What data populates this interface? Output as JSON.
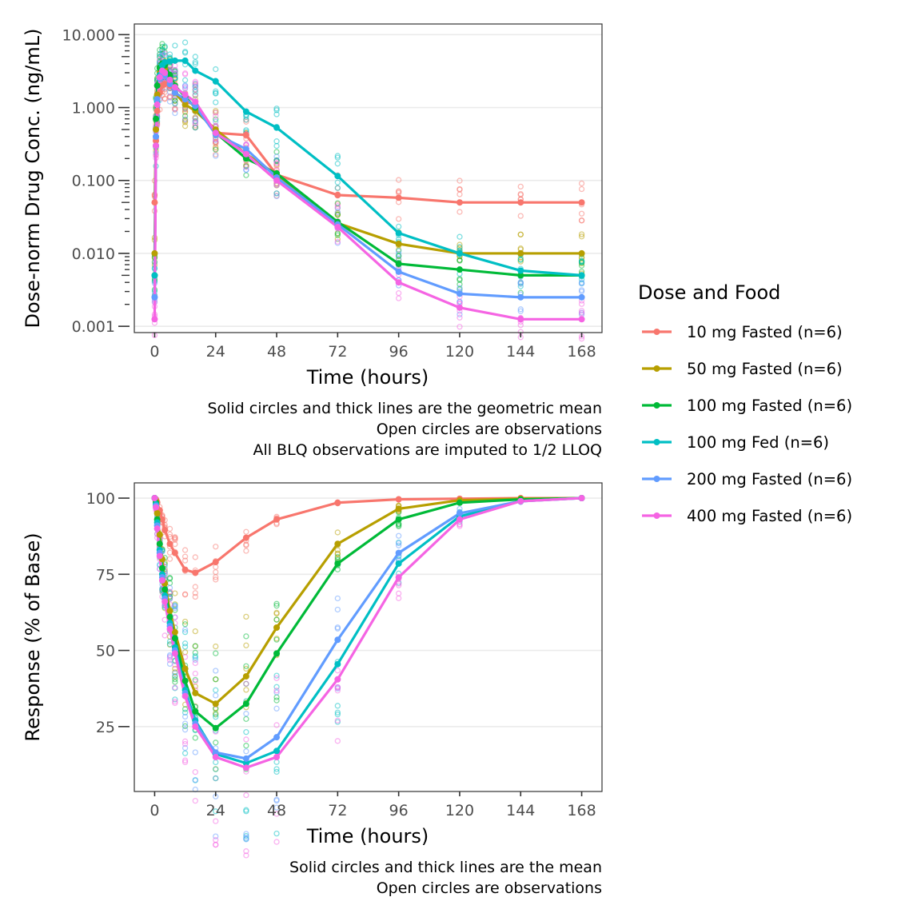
{
  "chart_data": [
    {
      "type": "line",
      "title": "",
      "xlabel": "Time (hours)",
      "ylabel": "Dose-norm Drug Conc. (ng/mL)",
      "yscale": "log10",
      "xlim": [
        -8,
        176
      ],
      "ylim": [
        0.00082,
        14
      ],
      "x_ticks": [
        0,
        24,
        48,
        72,
        96,
        120,
        144,
        168
      ],
      "y_ticks": [
        10,
        1,
        0.1,
        0.01,
        0.001
      ],
      "y_tick_labels": [
        "10.000",
        "1.000",
        "0.100",
        "0.010",
        "0.001"
      ],
      "grid": "horizontal-major",
      "caption": [
        "Solid circles and thick lines are the geometric mean",
        "Open circles are observations",
        "All BLQ observations are imputed to 1/2 LLOQ"
      ],
      "x": [
        0,
        0.5,
        1,
        2,
        3,
        4,
        6,
        8,
        12,
        16,
        24,
        36,
        48,
        72,
        96,
        120,
        144,
        168
      ],
      "series": [
        {
          "name": "10 mg Fasted (n=6)",
          "color": "#F8766D",
          "values": [
            0.05,
            0.35,
            0.9,
            1.6,
            2.0,
            2.1,
            2.0,
            1.6,
            1.2,
            1.1,
            0.45,
            0.42,
            0.12,
            0.063,
            0.058,
            0.05,
            0.05,
            0.05
          ]
        },
        {
          "name": "50 mg Fasted (n=6)",
          "color": "#B79F00",
          "values": [
            0.01,
            0.5,
            1.5,
            3.0,
            3.6,
            3.4,
            2.4,
            1.6,
            1.1,
            0.9,
            0.5,
            0.23,
            0.12,
            0.026,
            0.0135,
            0.01,
            0.01,
            0.01
          ]
        },
        {
          "name": "100 mg Fasted (n=6)",
          "color": "#00BA38",
          "values": [
            0.005,
            0.7,
            2.0,
            3.5,
            4.0,
            3.8,
            2.8,
            2.0,
            1.4,
            1.0,
            0.45,
            0.2,
            0.125,
            0.027,
            0.0072,
            0.006,
            0.005,
            0.005
          ]
        },
        {
          "name": "100 mg Fed (n=6)",
          "color": "#00BFC4",
          "values": [
            0.005,
            0.3,
            1.2,
            2.8,
            3.8,
            4.2,
            4.3,
            4.4,
            4.4,
            3.2,
            2.3,
            0.88,
            0.53,
            0.115,
            0.019,
            0.01,
            0.0058,
            0.005
          ]
        },
        {
          "name": "200 mg Fasted (n=6)",
          "color": "#619CFF",
          "values": [
            0.0025,
            0.4,
            1.3,
            2.5,
            3.0,
            2.8,
            2.1,
            1.6,
            1.3,
            1.05,
            0.43,
            0.27,
            0.11,
            0.025,
            0.0056,
            0.0028,
            0.0025,
            0.0025
          ]
        },
        {
          "name": "400 mg Fasted (n=6)",
          "color": "#F564E3",
          "values": [
            0.00125,
            0.3,
            1.1,
            2.6,
            3.2,
            3.0,
            2.4,
            1.9,
            1.5,
            1.2,
            0.45,
            0.23,
            0.1,
            0.023,
            0.004,
            0.0018,
            0.00125,
            0.00125
          ]
        }
      ]
    },
    {
      "type": "line",
      "title": "",
      "xlabel": "Time (hours)",
      "ylabel": "Response (% of Base)",
      "yscale": "linear",
      "xlim": [
        -8,
        176
      ],
      "ylim": [
        3.7,
        105
      ],
      "x_ticks": [
        0,
        24,
        48,
        72,
        96,
        120,
        144,
        168
      ],
      "y_ticks": [
        100,
        75,
        50,
        25
      ],
      "grid": "horizontal-major",
      "caption": [
        "Solid circles and thick lines are the mean",
        "Open circles are observations"
      ],
      "x": [
        0,
        0.5,
        1,
        2,
        3,
        4,
        6,
        8,
        12,
        16,
        24,
        36,
        48,
        72,
        96,
        120,
        144,
        168
      ],
      "series": [
        {
          "name": "10 mg Fasted (n=6)",
          "color": "#F8766D",
          "values": [
            100,
            99.6,
            98.5,
            96,
            93,
            89.5,
            85,
            82,
            76.5,
            75.5,
            79,
            87,
            93,
            98.5,
            99.6,
            99.8,
            100,
            100
          ]
        },
        {
          "name": "50 mg Fasted (n=6)",
          "color": "#B79F00",
          "values": [
            100,
            99,
            95,
            88,
            80,
            72,
            63,
            56,
            44,
            36,
            32.5,
            41.5,
            57.5,
            85,
            96.5,
            99.3,
            99.8,
            100
          ]
        },
        {
          "name": "100 mg Fasted (n=6)",
          "color": "#00BA38",
          "values": [
            100,
            98.5,
            93,
            85,
            77,
            70,
            61,
            54,
            40,
            30,
            24.5,
            32.5,
            49,
            78.5,
            93,
            98.5,
            99.6,
            100
          ]
        },
        {
          "name": "100 mg Fed (n=6)",
          "color": "#00BFC4",
          "values": [
            100,
            98,
            92,
            83,
            75,
            68,
            59,
            51,
            37,
            27,
            16,
            13,
            17,
            45.5,
            78.5,
            94,
            99,
            100
          ]
        },
        {
          "name": "200 mg Fasted (n=6)",
          "color": "#619CFF",
          "values": [
            100,
            97.5,
            91,
            82,
            74,
            67,
            58,
            50,
            36,
            26,
            16.5,
            14.5,
            21.5,
            53.5,
            82,
            95,
            99,
            100
          ]
        },
        {
          "name": "400 mg Fasted (n=6)",
          "color": "#F564E3",
          "values": [
            100,
            97,
            90,
            81,
            73,
            66,
            57,
            49,
            35,
            25,
            15,
            11.5,
            15,
            40.5,
            74,
            93,
            99,
            100
          ]
        }
      ]
    }
  ],
  "legend": {
    "title": "Dose and Food",
    "items": [
      {
        "label": "10 mg Fasted (n=6)",
        "color": "#F8766D"
      },
      {
        "label": "50 mg Fasted (n=6)",
        "color": "#B79F00"
      },
      {
        "label": "100 mg Fasted (n=6)",
        "color": "#00BA38"
      },
      {
        "label": "100 mg Fed (n=6)",
        "color": "#00BFC4"
      },
      {
        "label": "200 mg Fasted (n=6)",
        "color": "#619CFF"
      },
      {
        "label": "400 mg Fasted (n=6)",
        "color": "#F564E3"
      }
    ]
  }
}
